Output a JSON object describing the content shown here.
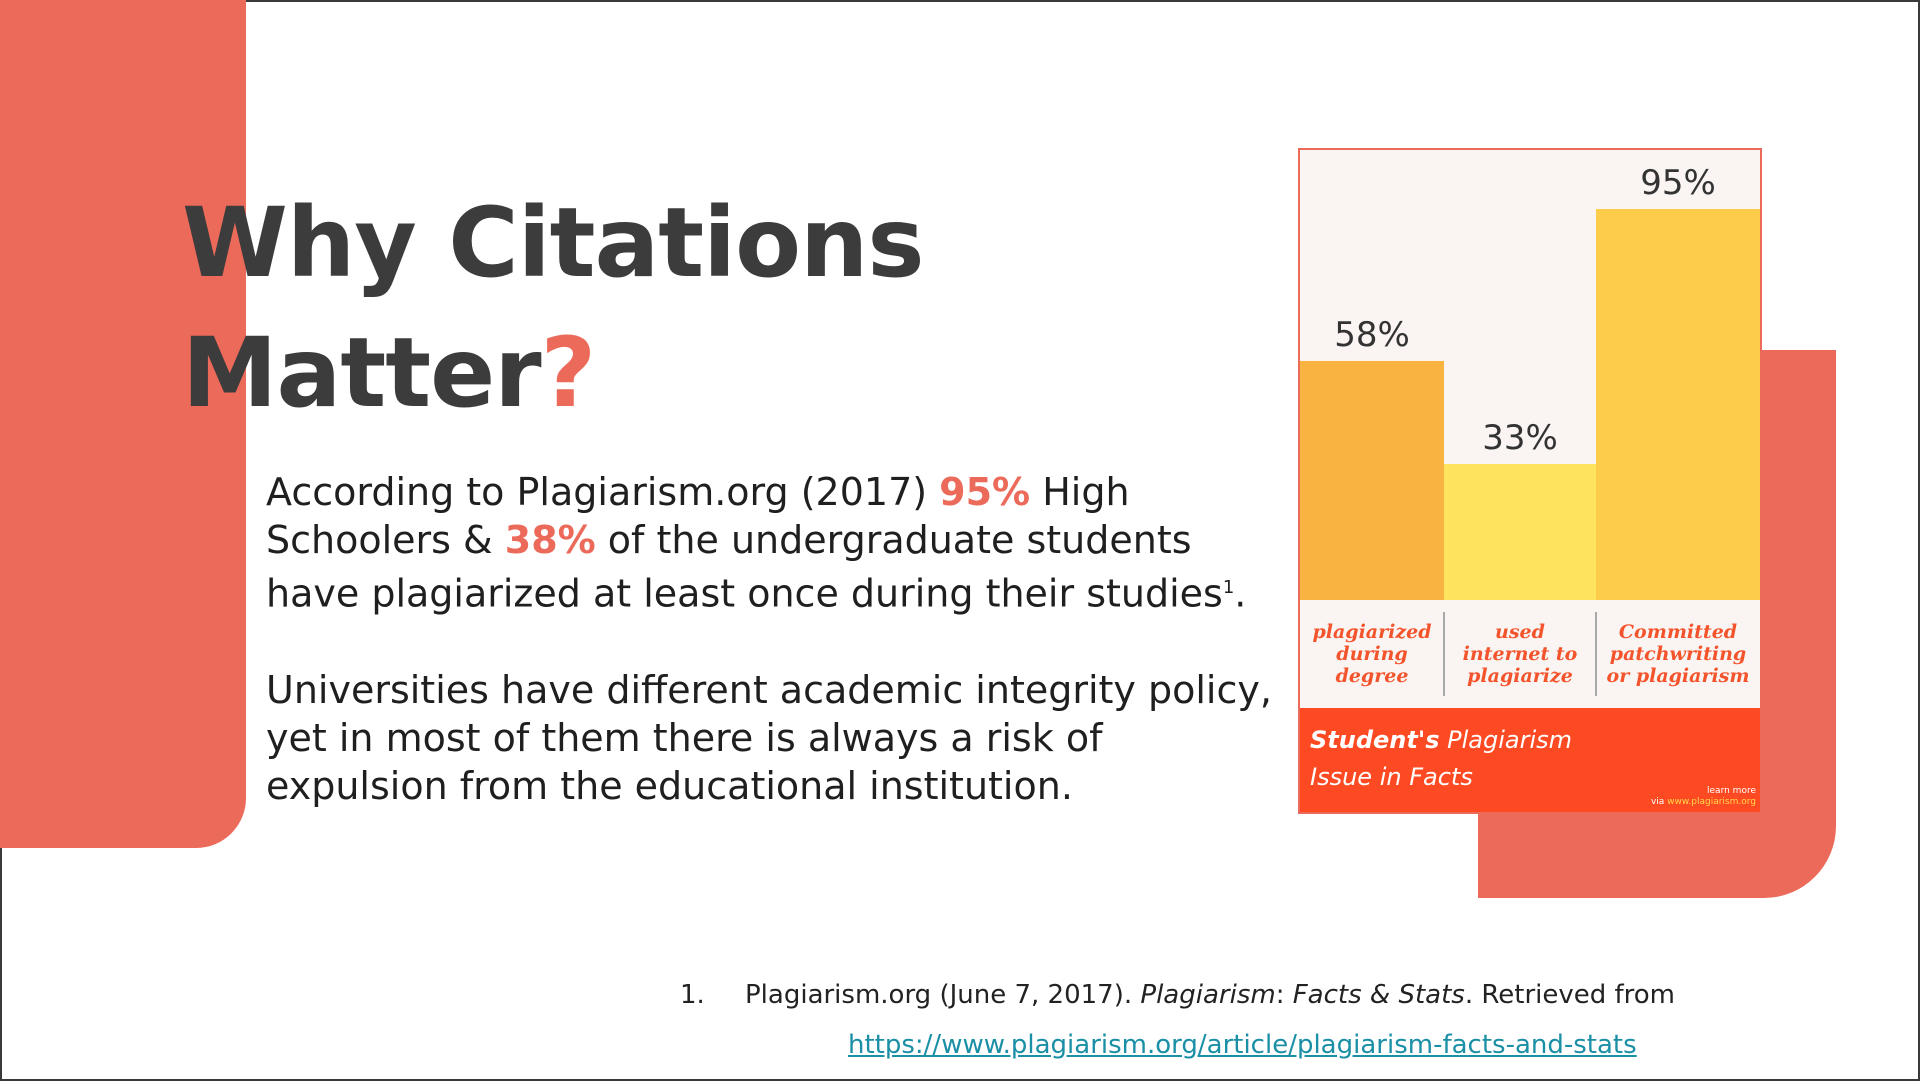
{
  "slide": {
    "title_line1": "Why Citations",
    "title_line2": "Matter",
    "title_mark": "?",
    "para1": {
      "t1": "According to Plagiarism.org (2017) ",
      "h1": "95%",
      "t2": " High Schoolers & ",
      "h2": "38%",
      "t3": " of the undergraduate students have plagiarized at least once during their studies",
      "sup": "1",
      "t4": "."
    },
    "para2": "Universities have different academic integrity policy, yet in most of them there is always a risk of expulsion from the educational institution.",
    "reference": {
      "number": "1.",
      "t1": "Plagiarism.org (June 7, 2017). ",
      "italic1": "Plagiarism",
      "t2": ": ",
      "italic2": "Facts & Stats",
      "t3": ". Retrieved from",
      "link": "https://www.plagiarism.org/article/plagiarism-facts-and-stats"
    }
  },
  "chart_data": {
    "type": "bar",
    "categories": [
      "plagiarized during degree",
      "used internet to plagiarize",
      "Committed patchwriting or plagiarism"
    ],
    "values": [
      58,
      33,
      95
    ],
    "value_labels": [
      "58%",
      "33%",
      "95%"
    ],
    "ylim": [
      0,
      100
    ],
    "grid": false,
    "colors": [
      "#f9b340",
      "#fde35e",
      "#fdcc4a"
    ],
    "title_bold": "Student's",
    "title_rest": " Plagiarism Issue in Facts",
    "footer_line1": "learn more",
    "footer_via": "via ",
    "footer_site": "www.plagiarism.org"
  },
  "colors": {
    "accent": "#ec6a5a",
    "title": "#3c3c3c",
    "link": "#1a8fa6",
    "infographic_footer": "#fe4a22",
    "category_text": "#f4542c"
  }
}
